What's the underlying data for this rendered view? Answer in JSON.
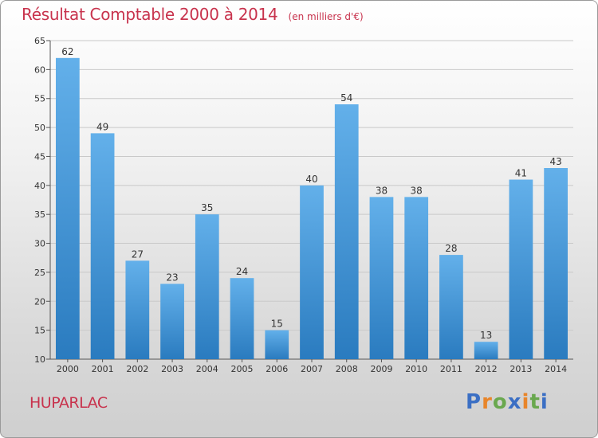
{
  "title": {
    "main": "Résultat Comptable 2000 à 2014",
    "unit": "(en milliers d'€)"
  },
  "commune": "HUPARLAC",
  "logo": {
    "text": "Proxiti",
    "colors": [
      "#3b6fc4",
      "#e8852a",
      "#6aa84f"
    ]
  },
  "colors": {
    "bar_light": "#63b0ea",
    "bar_dark": "#2a7bbf",
    "title": "#c8334d",
    "grid": "#c9c9c9"
  },
  "chart_data": {
    "type": "bar",
    "title": "Résultat Comptable 2000 à 2014",
    "subtitle": "(en milliers d'€)",
    "xlabel": "",
    "ylabel": "",
    "categories": [
      "2000",
      "2001",
      "2002",
      "2003",
      "2004",
      "2005",
      "2006",
      "2007",
      "2008",
      "2009",
      "2010",
      "2011",
      "2012",
      "2013",
      "2014"
    ],
    "values": [
      62,
      49,
      27,
      23,
      35,
      24,
      15,
      40,
      54,
      38,
      38,
      28,
      13,
      41,
      43
    ],
    "ylim": [
      10,
      65
    ],
    "yticks": [
      10,
      15,
      20,
      25,
      30,
      35,
      40,
      45,
      50,
      55,
      60,
      65
    ],
    "grid": true
  }
}
